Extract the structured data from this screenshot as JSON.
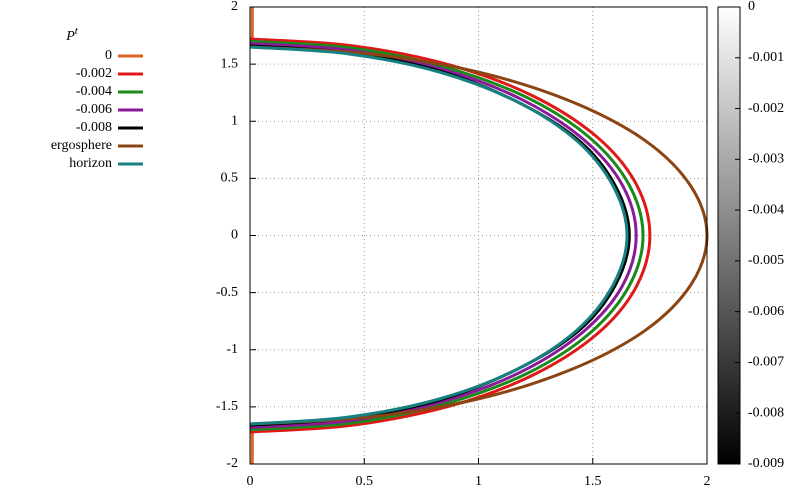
{
  "chart_data": {
    "type": "line",
    "legend_title": "P",
    "legend_title_superscript": "t",
    "xlim": [
      0,
      2
    ],
    "ylim": [
      -2,
      2
    ],
    "xticks": [
      0,
      0.5,
      1,
      1.5,
      2
    ],
    "yticks": [
      -2,
      -1.5,
      -1,
      -0.5,
      0,
      0.5,
      1,
      1.5,
      2
    ],
    "grid": true,
    "legend": "left",
    "series": [
      {
        "name": "0",
        "color": "#e0602a",
        "x": [
          0.01,
          0.01,
          null,
          0.01,
          0.01
        ],
        "y": [
          -2,
          -1.65,
          null,
          1.65,
          2
        ]
      },
      {
        "name": "-0.002",
        "color": "#e01818",
        "x": [
          0,
          0.45,
          0.88,
          1.24,
          1.52,
          1.69,
          1.75,
          1.69,
          1.52,
          1.24,
          0.88,
          0.45,
          0
        ],
        "y": [
          -1.72,
          -1.66,
          -1.49,
          -1.22,
          -0.86,
          -0.45,
          0,
          0.45,
          0.86,
          1.22,
          1.49,
          1.66,
          1.72
        ]
      },
      {
        "name": "-0.004",
        "color": "#1a8a1a",
        "x": [
          0,
          0.45,
          0.86,
          1.22,
          1.49,
          1.66,
          1.72,
          1.66,
          1.49,
          1.22,
          0.86,
          0.45,
          0
        ],
        "y": [
          -1.7,
          -1.64,
          -1.47,
          -1.2,
          -0.85,
          -0.44,
          0,
          0.44,
          0.85,
          1.2,
          1.47,
          1.64,
          1.7
        ]
      },
      {
        "name": "-0.006",
        "color": "#8a1a9a",
        "x": [
          0,
          0.44,
          0.85,
          1.19,
          1.46,
          1.63,
          1.69,
          1.63,
          1.46,
          1.19,
          0.85,
          0.44,
          0
        ],
        "y": [
          -1.68,
          -1.62,
          -1.45,
          -1.19,
          -0.84,
          -0.44,
          0,
          0.44,
          0.84,
          1.19,
          1.45,
          1.62,
          1.68
        ]
      },
      {
        "name": "-0.008",
        "color": "#000000",
        "x": [
          0,
          0.43,
          0.83,
          1.17,
          1.44,
          1.6,
          1.66,
          1.6,
          1.44,
          1.17,
          0.83,
          0.43,
          0
        ],
        "y": [
          -1.66,
          -1.6,
          -1.44,
          -1.17,
          -0.83,
          -0.43,
          0,
          0.43,
          0.83,
          1.17,
          1.44,
          1.6,
          1.66
        ]
      },
      {
        "name": "ergosphere",
        "color": "#8b4513",
        "x": [
          0,
          0.52,
          1,
          1.41,
          1.73,
          1.93,
          2,
          1.93,
          1.73,
          1.41,
          1,
          0.52,
          0
        ],
        "y": [
          -1.65,
          -1.59,
          -1.43,
          -1.17,
          -0.83,
          -0.43,
          0,
          0.43,
          0.83,
          1.17,
          1.43,
          1.59,
          1.65
        ]
      },
      {
        "name": "horizon",
        "color": "#178080",
        "x": [
          0,
          0.43,
          0.83,
          1.17,
          1.43,
          1.59,
          1.65,
          1.59,
          1.43,
          1.17,
          0.83,
          0.43,
          0
        ],
        "y": [
          -1.65,
          -1.59,
          -1.43,
          -1.17,
          -0.83,
          -0.43,
          0,
          0.43,
          0.83,
          1.17,
          1.43,
          1.59,
          1.65
        ]
      }
    ],
    "colorbar": {
      "lim": [
        -0.009,
        0
      ],
      "ticks": [
        0,
        -0.001,
        -0.002,
        -0.003,
        -0.004,
        -0.005,
        -0.006,
        -0.007,
        -0.008,
        -0.009
      ],
      "colors": [
        "#000000",
        "#ffffff"
      ]
    }
  }
}
